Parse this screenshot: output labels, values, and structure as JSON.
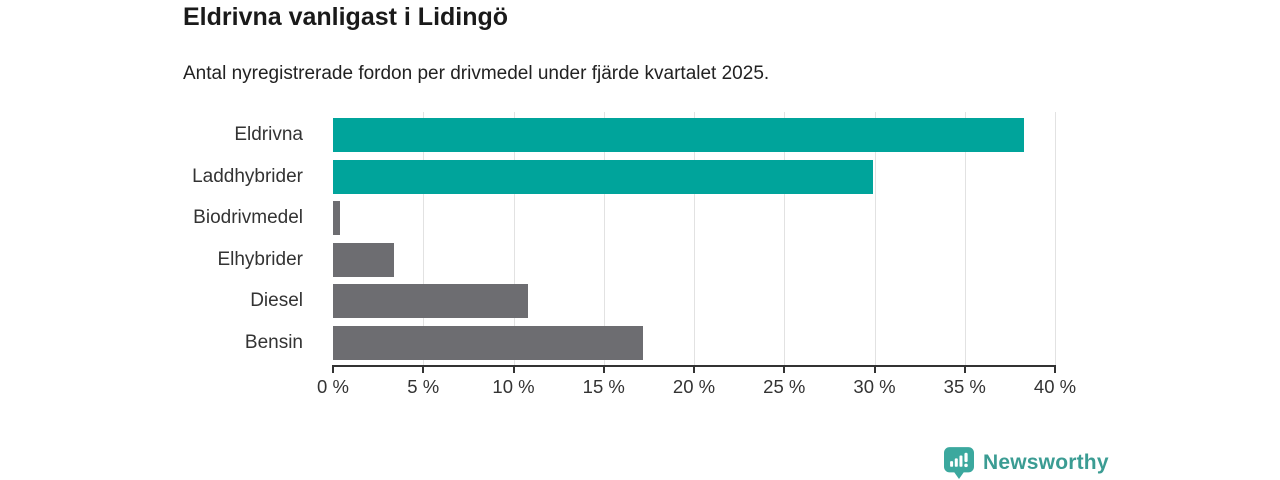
{
  "chart_data": {
    "type": "bar",
    "orientation": "horizontal",
    "title": "Eldrivna vanligast i Lidingö",
    "subtitle": "Antal nyregistrerade fordon per drivmedel under fjärde kvartalet 2025.",
    "categories": [
      "Eldrivna",
      "Laddhybrider",
      "Biodrivmedel",
      "Elhybrider",
      "Diesel",
      "Bensin"
    ],
    "values": [
      38.3,
      29.9,
      0.4,
      3.4,
      10.8,
      17.2
    ],
    "unit": "%",
    "xlim": [
      0,
      40
    ],
    "x_ticks": [
      0,
      5,
      10,
      15,
      20,
      25,
      30,
      35,
      40
    ],
    "x_tick_labels": [
      "0 %",
      "5 %",
      "10 %",
      "15 %",
      "20 %",
      "25 %",
      "30 %",
      "35 %",
      "40 %"
    ],
    "bar_colors": [
      "#00a49b",
      "#00a49b",
      "#6d6d71",
      "#6d6d71",
      "#6d6d71",
      "#6d6d71"
    ],
    "grid": true,
    "legend": "none",
    "colors": {
      "highlight": "#00a49b",
      "default": "#6d6d71",
      "gridline": "#e2e2e2",
      "axis": "#333333",
      "text": "#333333"
    }
  },
  "footer": {
    "brand": "Newsworthy",
    "logo_icon": "bar-chart-bubble-icon",
    "brand_color": "#3b9c93"
  }
}
